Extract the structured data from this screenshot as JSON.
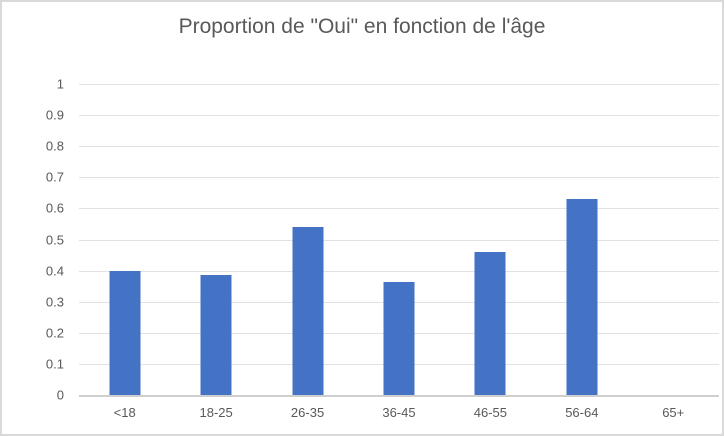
{
  "chart_data": {
    "type": "bar",
    "title": "Proportion de \"Oui\" en fonction de l'âge",
    "categories": [
      "<18",
      "18-25",
      "26-35",
      "36-45",
      "46-55",
      "56-64",
      "65+"
    ],
    "values": [
      0.4,
      0.385,
      0.54,
      0.365,
      0.46,
      0.63,
      0
    ],
    "xlabel": "",
    "ylabel": "",
    "ylim": [
      0,
      1
    ],
    "ytick_step": 0.1,
    "yticks": [
      "1",
      "0.9",
      "0.8",
      "0.7",
      "0.6",
      "0.5",
      "0.4",
      "0.3",
      "0.2",
      "0.1",
      "0"
    ],
    "grid": true,
    "legend": false,
    "colors": {
      "bar": "#4472C4",
      "gridline": "#E2E2E2",
      "axis_line": "#CFCFCF",
      "text": "#595959",
      "figure_border": "#D9D9D9",
      "background": "#FFFFFF"
    }
  }
}
